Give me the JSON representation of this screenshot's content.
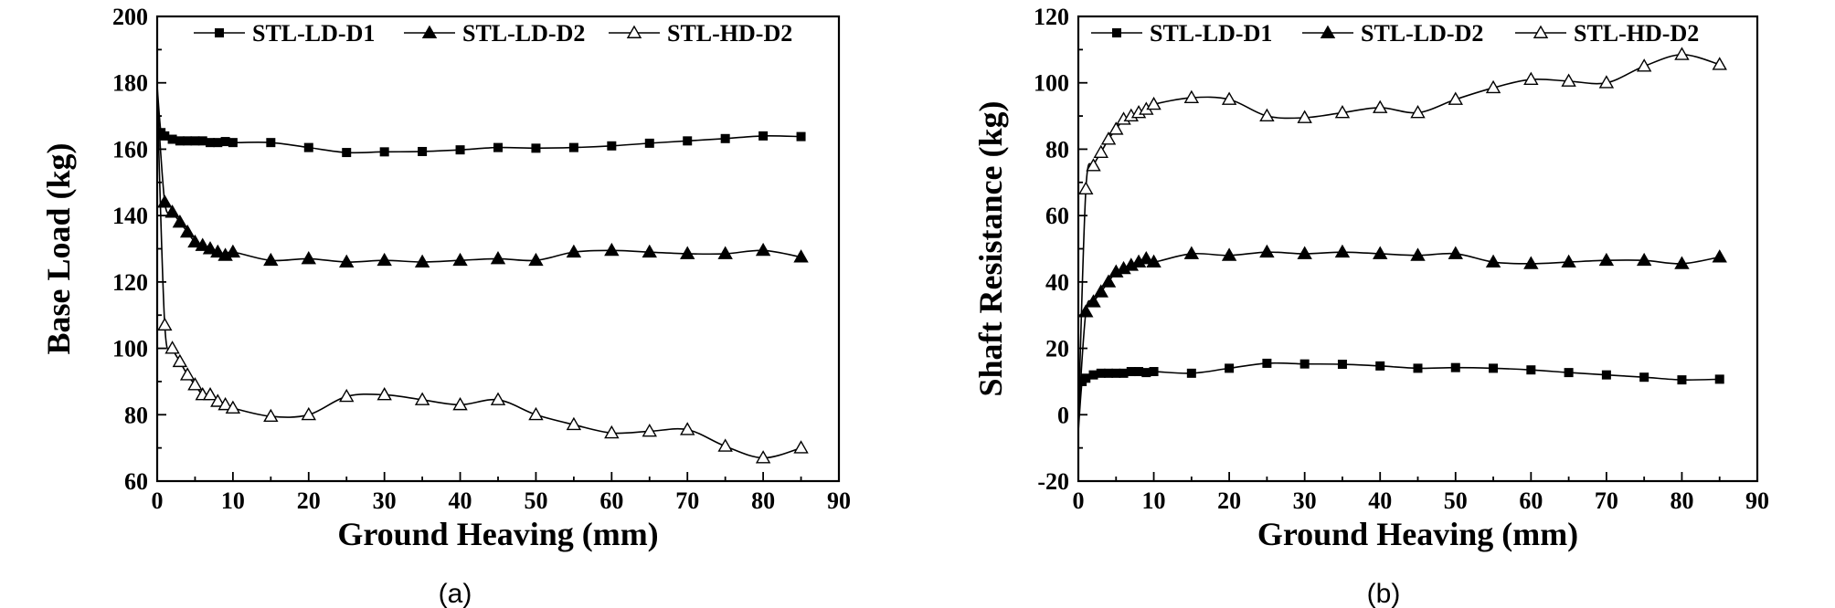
{
  "chart_data": [
    {
      "type": "line",
      "panel_label": "(a)",
      "xlabel": "Ground Heaving (mm)",
      "ylabel": "Base Load (kg)",
      "xlim": [
        0,
        90
      ],
      "ylim": [
        60,
        200
      ],
      "xticks": [
        0,
        10,
        20,
        30,
        40,
        50,
        60,
        70,
        80,
        90
      ],
      "yticks": [
        60,
        80,
        100,
        120,
        140,
        160,
        180,
        200
      ],
      "legend_position": "top",
      "grid": false,
      "series": [
        {
          "name": "STL-LD-D1",
          "marker": "square-filled",
          "x": [
            0,
            0.5,
            1,
            2,
            3,
            4,
            5,
            6,
            7,
            8,
            9,
            10,
            15,
            20,
            25,
            30,
            35,
            40,
            45,
            50,
            55,
            60,
            65,
            70,
            75,
            80,
            85
          ],
          "y": [
            179,
            165,
            164,
            163,
            162.5,
            162.5,
            162.5,
            162.5,
            162,
            162,
            162.3,
            162,
            162,
            160.5,
            159,
            159.2,
            159.3,
            159.8,
            160.5,
            160.3,
            160.5,
            161,
            161.8,
            162.5,
            163.2,
            164,
            163.8
          ]
        },
        {
          "name": "STL-LD-D2",
          "marker": "triangle-filled",
          "x": [
            0,
            1,
            2,
            3,
            4,
            5,
            6,
            7,
            8,
            9,
            10,
            15,
            20,
            25,
            30,
            35,
            40,
            45,
            50,
            55,
            60,
            65,
            70,
            75,
            80,
            85
          ],
          "y": [
            175,
            144,
            141,
            138,
            135,
            132,
            131,
            130,
            129,
            128,
            129,
            126.5,
            127,
            126,
            126.5,
            126,
            126.5,
            127,
            126.5,
            129,
            129.5,
            129,
            128.5,
            128.5,
            129.5,
            127.5
          ]
        },
        {
          "name": "STL-HD-D2",
          "marker": "triangle-open",
          "x": [
            0,
            1,
            2,
            3,
            4,
            5,
            6,
            7,
            8,
            9,
            10,
            15,
            20,
            25,
            30,
            35,
            40,
            45,
            50,
            55,
            60,
            65,
            70,
            75,
            80,
            85
          ],
          "y": [
            176,
            107,
            100,
            96,
            92,
            89,
            86,
            86,
            84,
            83,
            82,
            79.5,
            80,
            85.5,
            86,
            84.5,
            83,
            84.5,
            80,
            77,
            74.5,
            75,
            75.5,
            70.5,
            67,
            70
          ]
        }
      ]
    },
    {
      "type": "line",
      "panel_label": "(b)",
      "xlabel": "Ground Heaving (mm)",
      "ylabel": "Shaft Resistance (kg)",
      "xlim": [
        0,
        90
      ],
      "ylim": [
        -20,
        120
      ],
      "xticks": [
        0,
        10,
        20,
        30,
        40,
        50,
        60,
        70,
        80,
        90
      ],
      "yticks": [
        -20,
        0,
        20,
        40,
        60,
        80,
        100,
        120
      ],
      "legend_position": "top",
      "grid": false,
      "series": [
        {
          "name": "STL-LD-D1",
          "marker": "square-filled",
          "x": [
            0,
            0.5,
            1,
            2,
            3,
            4,
            5,
            6,
            7,
            8,
            9,
            10,
            15,
            20,
            25,
            30,
            35,
            40,
            45,
            50,
            55,
            60,
            65,
            70,
            75,
            80,
            85
          ],
          "y": [
            -5,
            10,
            11,
            12,
            12.5,
            12.5,
            12.5,
            12.5,
            13,
            13,
            12.7,
            13,
            12.5,
            14,
            15.5,
            15.3,
            15.2,
            14.7,
            14,
            14.2,
            14,
            13.5,
            12.7,
            12,
            11.3,
            10.5,
            10.7
          ]
        },
        {
          "name": "STL-LD-D2",
          "marker": "triangle-filled",
          "x": [
            0,
            1,
            2,
            3,
            4,
            5,
            6,
            7,
            8,
            9,
            10,
            15,
            20,
            25,
            30,
            35,
            40,
            45,
            50,
            55,
            60,
            65,
            70,
            75,
            80,
            85
          ],
          "y": [
            -1,
            31,
            34,
            37,
            40,
            43,
            44,
            45,
            46,
            47,
            46,
            48.5,
            48,
            49,
            48.5,
            49,
            48.5,
            48,
            48.5,
            46,
            45.5,
            46,
            46.5,
            46.5,
            45.5,
            47.5
          ]
        },
        {
          "name": "STL-HD-D2",
          "marker": "triangle-open",
          "x": [
            0,
            1,
            2,
            3,
            4,
            5,
            6,
            7,
            8,
            9,
            10,
            15,
            20,
            25,
            30,
            35,
            40,
            45,
            50,
            55,
            60,
            65,
            70,
            75,
            80,
            85
          ],
          "y": [
            -2,
            68,
            75,
            79,
            83,
            86,
            89,
            90,
            91,
            92,
            93.5,
            95.5,
            95,
            90,
            89.5,
            91,
            92.5,
            91,
            95,
            98.5,
            101,
            100.5,
            100,
            105,
            108.5,
            105.5
          ]
        }
      ]
    }
  ]
}
